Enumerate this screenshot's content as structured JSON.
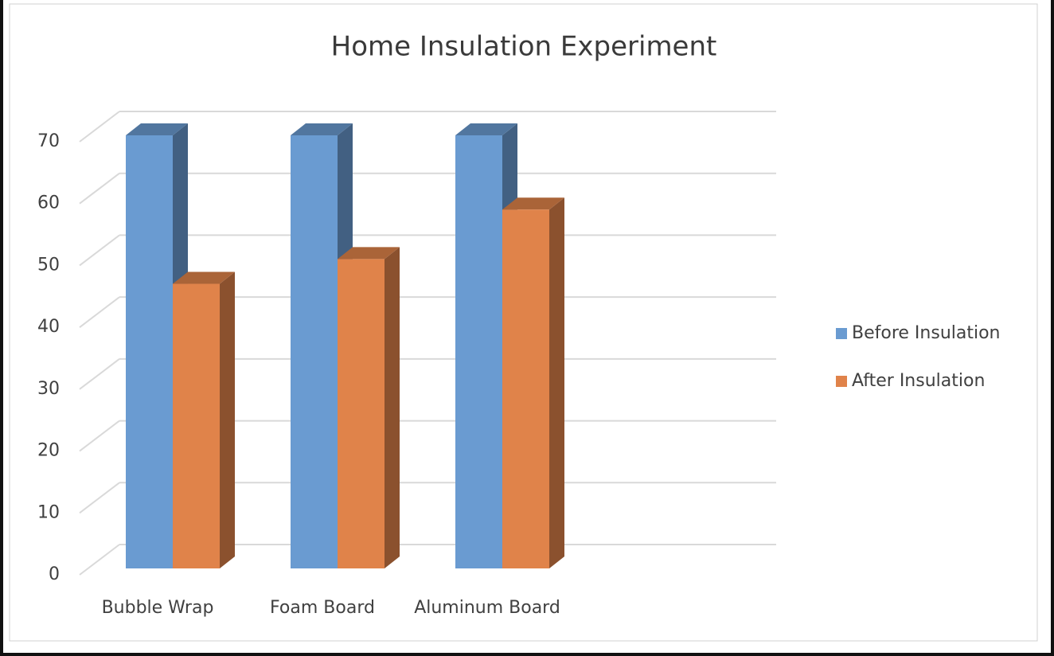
{
  "chart_data": {
    "type": "bar3d",
    "title": "Home Insulation Experiment",
    "categories": [
      "Bubble Wrap",
      "Foam Board",
      "Aluminum Board"
    ],
    "series": [
      {
        "name": "Before Insulation",
        "color": "#6a9bd1",
        "values": [
          70,
          70,
          70
        ]
      },
      {
        "name": "After Insulation",
        "color": "#e0834a",
        "values": [
          46,
          50,
          58
        ]
      }
    ],
    "ylim": [
      0,
      70
    ],
    "yticks": [
      0,
      10,
      20,
      30,
      40,
      50,
      60,
      70
    ],
    "grid": true,
    "legend": "right"
  }
}
